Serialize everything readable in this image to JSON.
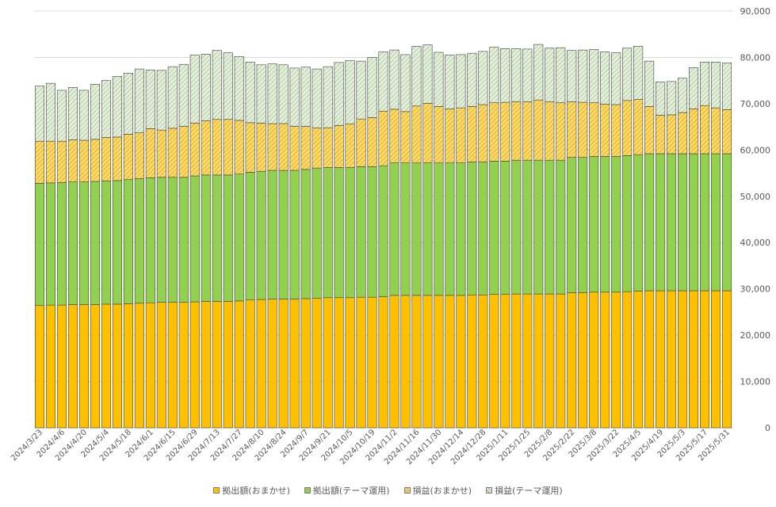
{
  "chart_data": {
    "type": "bar",
    "stacked": true,
    "categories": [
      "2024/3/23",
      "2024/3/30",
      "2024/4/6",
      "2024/4/13",
      "2024/4/20",
      "2024/4/27",
      "2024/5/4",
      "2024/5/11",
      "2024/5/18",
      "2024/5/25",
      "2024/6/1",
      "2024/6/8",
      "2024/6/15",
      "2024/6/22",
      "2024/6/29",
      "2024/7/6",
      "2024/7/13",
      "2024/7/20",
      "2024/7/27",
      "2024/8/3",
      "2024/8/10",
      "2024/8/17",
      "2024/8/24",
      "2024/8/31",
      "2024/9/7",
      "2024/9/14",
      "2024/9/21",
      "2024/9/28",
      "2024/10/5",
      "2024/10/12",
      "2024/10/19",
      "2024/10/26",
      "2024/11/2",
      "2024/11/9",
      "2024/11/16",
      "2024/11/23",
      "2024/11/30",
      "2024/12/7",
      "2024/12/14",
      "2024/12/21",
      "2024/12/28",
      "2025/1/4",
      "2025/1/11",
      "2025/1/18",
      "2025/1/25",
      "2025/2/1",
      "2025/2/8",
      "2025/2/15",
      "2025/2/22",
      "2025/3/1",
      "2025/3/8",
      "2025/3/15",
      "2025/3/22",
      "2025/3/29",
      "2025/4/5",
      "2025/4/12",
      "2025/4/19",
      "2025/4/26",
      "2025/5/3",
      "2025/5/10",
      "2025/5/17",
      "2025/5/24",
      "2025/5/31"
    ],
    "x_tick_labels": [
      "2024/3/23",
      "2024/4/6",
      "2024/4/20",
      "2024/5/4",
      "2024/5/18",
      "2024/6/1",
      "2024/6/15",
      "2024/6/29",
      "2024/7/13",
      "2024/7/27",
      "2024/8/10",
      "2024/8/24",
      "2024/9/7",
      "2024/9/21",
      "2024/10/5",
      "2024/10/19",
      "2024/11/2",
      "2024/11/16",
      "2024/11/30",
      "2024/12/14",
      "2024/12/28",
      "2025/1/11",
      "2025/1/25",
      "2025/2/8",
      "2025/2/22",
      "2025/3/8",
      "2025/3/22",
      "2025/4/5",
      "2025/4/19",
      "2025/5/3",
      "2025/5/17",
      "2025/5/31"
    ],
    "ylim": [
      0,
      90000
    ],
    "y_ticks": [
      "0",
      "10,000",
      "20,000",
      "30,000",
      "40,000",
      "50,000",
      "60,000",
      "70,000",
      "80,000",
      "90,000"
    ],
    "y_axis_side": "right",
    "grid": true,
    "legend_position": "bottom",
    "series": [
      {
        "name": "拠出額(おまかせ)",
        "color": "#ffc000",
        "pattern": "solid",
        "values": [
          26400,
          26500,
          26500,
          26600,
          26600,
          26600,
          26700,
          26700,
          26800,
          26900,
          27000,
          27100,
          27100,
          27100,
          27200,
          27300,
          27300,
          27300,
          27400,
          27600,
          27700,
          27800,
          27800,
          27800,
          27900,
          28000,
          28100,
          28100,
          28100,
          28200,
          28200,
          28300,
          28600,
          28600,
          28600,
          28600,
          28600,
          28600,
          28600,
          28700,
          28700,
          28800,
          28800,
          28900,
          28900,
          28900,
          28900,
          28900,
          29200,
          29200,
          29300,
          29300,
          29300,
          29400,
          29500,
          29600,
          29600,
          29600,
          29600,
          29600,
          29600,
          29600,
          29600
        ]
      },
      {
        "name": "拠出額(テーマ運用)",
        "color": "#92d050",
        "pattern": "solid",
        "values": [
          26400,
          26400,
          26500,
          26500,
          26500,
          26600,
          26600,
          26700,
          26800,
          26900,
          27000,
          27000,
          27000,
          27000,
          27200,
          27300,
          27300,
          27300,
          27400,
          27600,
          27700,
          27800,
          27800,
          27800,
          27900,
          28100,
          28100,
          28100,
          28100,
          28200,
          28200,
          28300,
          28600,
          28600,
          28600,
          28600,
          28600,
          28600,
          28600,
          28700,
          28700,
          28800,
          28800,
          28900,
          28900,
          28900,
          28900,
          28900,
          29200,
          29200,
          29300,
          29300,
          29300,
          29400,
          29500,
          29600,
          29600,
          29600,
          29600,
          29600,
          29600,
          29600,
          29600
        ]
      },
      {
        "name": "損益(おまかせ)",
        "color": "#ffd966",
        "pattern": "hatch",
        "values": [
          9100,
          9000,
          8900,
          9100,
          9000,
          9100,
          9400,
          9400,
          9800,
          9900,
          10600,
          10200,
          10600,
          11000,
          11400,
          11700,
          12000,
          12000,
          11600,
          10700,
          10400,
          10100,
          10100,
          9500,
          9300,
          8700,
          8600,
          9100,
          9400,
          10300,
          10600,
          11800,
          11600,
          11100,
          12300,
          12900,
          12200,
          11700,
          11900,
          12000,
          12400,
          12600,
          12700,
          12600,
          12600,
          13000,
          12600,
          12400,
          12000,
          11900,
          11600,
          11300,
          11200,
          11900,
          11900,
          10200,
          8300,
          8400,
          8900,
          9700,
          10400,
          9900,
          9500
        ]
      },
      {
        "name": "損益(テーマ運用)",
        "color": "#e2efda",
        "pattern": "hatch",
        "values": [
          11900,
          12500,
          11000,
          11300,
          10800,
          11900,
          12300,
          13100,
          13200,
          13800,
          12700,
          12900,
          13300,
          13400,
          14700,
          14400,
          14900,
          14400,
          13800,
          13100,
          12600,
          12900,
          12700,
          12600,
          12800,
          12700,
          13200,
          13600,
          13700,
          12500,
          13000,
          12800,
          12800,
          12300,
          12900,
          12600,
          11700,
          11600,
          11500,
          11500,
          11500,
          12000,
          11600,
          11500,
          11400,
          12000,
          11600,
          11900,
          11100,
          11300,
          11500,
          11300,
          11200,
          11300,
          11500,
          9800,
          7200,
          7200,
          7400,
          8900,
          9400,
          9900,
          10100
        ]
      }
    ]
  }
}
